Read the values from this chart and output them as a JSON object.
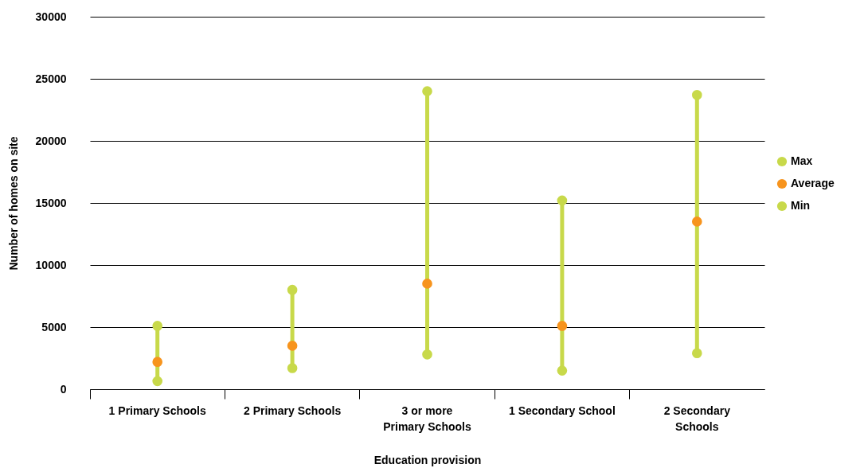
{
  "chart_data": {
    "type": "scatter",
    "xlabel": "Education provision",
    "ylabel": "Number of homes on site",
    "categories": [
      "1 Primary Schools",
      "2 Primary Schools",
      "3 or more Primary Schools",
      "1 Secondary School",
      "2 Secondary Schools"
    ],
    "series": [
      {
        "name": "Max",
        "color": "#c8d94a",
        "values": [
          5100,
          8000,
          24000,
          15200,
          23700
        ]
      },
      {
        "name": "Average",
        "color": "#f7941d",
        "values": [
          2200,
          3500,
          8500,
          5100,
          13500
        ]
      },
      {
        "name": "Min",
        "color": "#c8d94a",
        "values": [
          650,
          1700,
          2800,
          1500,
          2900
        ]
      }
    ],
    "ylim": [
      0,
      30000
    ],
    "yticks": [
      0,
      5000,
      10000,
      15000,
      20000,
      25000,
      30000
    ],
    "grid": "y",
    "legend": "right",
    "marker": "circle"
  }
}
